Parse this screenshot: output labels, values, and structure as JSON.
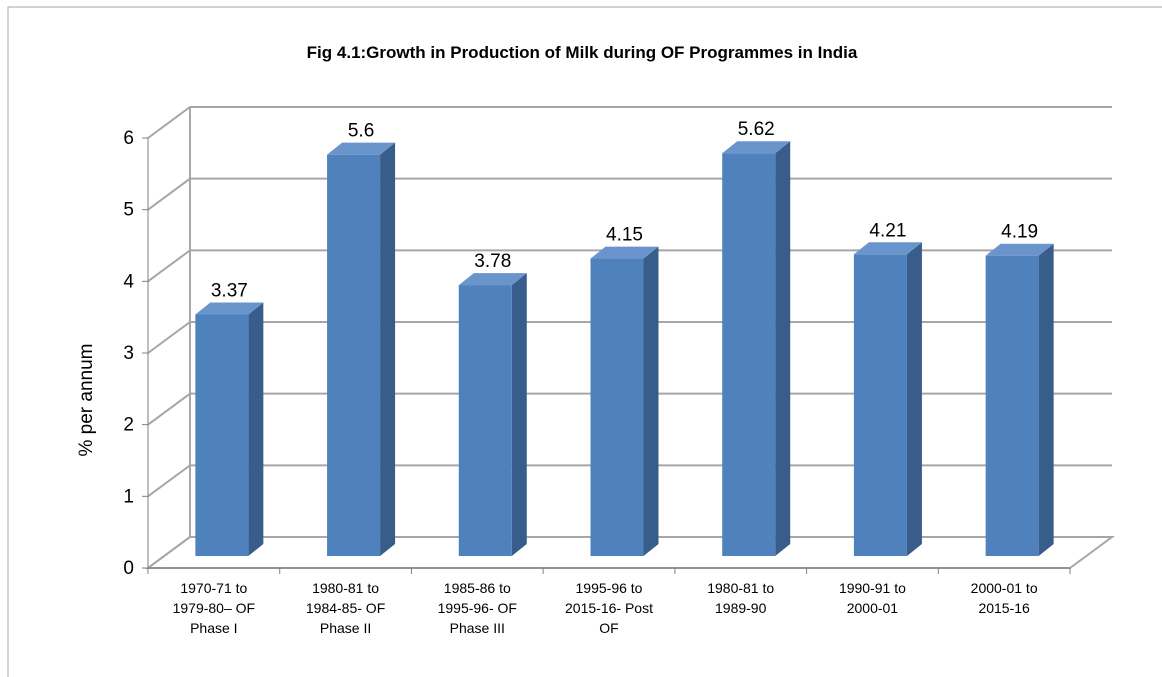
{
  "chart_data": {
    "type": "bar",
    "title": "Fig 4.1:Growth in Production of Milk during OF Programmes in India",
    "y_label": "% per annum",
    "categories": [
      "1970-71 to 1979-80– OF Phase I",
      "1980-81 to 1984-85- OF Phase II",
      "1985-86 to 1995-96- OF Phase III",
      "1995-96 to 2015-16- Post OF",
      "1980-81 to 1989-90",
      "1990-91 to 2000-01",
      "2000-01 to 2015-16"
    ],
    "values": [
      3.37,
      5.6,
      3.78,
      4.15,
      5.62,
      4.21,
      4.19
    ],
    "color": "#4f81bd",
    "ylim": [
      0,
      6
    ],
    "yticks": [
      0,
      1,
      2,
      3,
      4,
      5,
      6
    ],
    "grid": true
  }
}
